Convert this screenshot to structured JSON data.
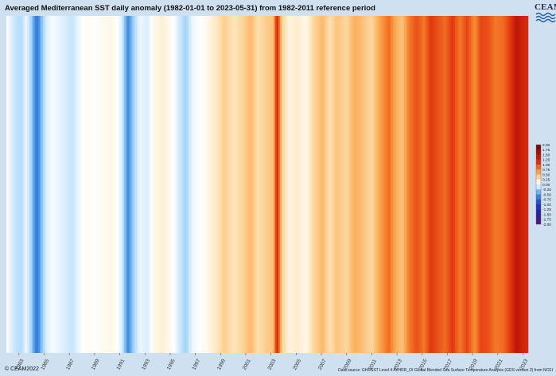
{
  "header": {
    "title": "Averaged Mediterranean SST daily anomaly (1982-01-01 to 2023-05-31) from 1982-2011 reference period",
    "logo_text": "CEAM"
  },
  "footer": {
    "copyright": "© CEAM2022",
    "source": "Data source: GHRSST Level 4 AVHRR_OI Global Blended Sea Surface Temperature Analysis (GDS version 2) from NCEI"
  },
  "colors": {
    "background": "#cfe0f1",
    "accent_warm": "#c41a05",
    "accent_cold": "#4a8fe0"
  },
  "chart_data": {
    "type": "heatmap",
    "title": "Averaged Mediterranean SST daily anomaly (1982-01-01 to 2023-05-31) from 1982-2011 reference period",
    "x_range": [
      "1982-01-01",
      "2023-05-31"
    ],
    "xtick_labels": [
      "1983",
      "1985",
      "1987",
      "1989",
      "1991",
      "1993",
      "1995",
      "1997",
      "1999",
      "2001",
      "2003",
      "2005",
      "2007",
      "2009",
      "2011",
      "2013",
      "2015",
      "2017",
      "2019",
      "2021",
      "2023"
    ],
    "colorbar": {
      "min": -2.0,
      "max": 2.0,
      "tick_labels": [
        "2.00",
        "1.75",
        "1.50",
        "1.25",
        "1.00",
        "0.75",
        "0.50",
        "0.25",
        "0.00",
        "-0.25",
        "-0.50",
        "-0.75",
        "-1.00",
        "-1.25",
        "-1.50",
        "-1.75",
        "-2.00"
      ]
    },
    "anomaly_series": [
      {
        "date": "1982-01-01",
        "value": 0.0
      },
      {
        "date": "1982-09-01",
        "value": -0.15
      },
      {
        "date": "1983-03-01",
        "value": -0.2
      },
      {
        "date": "1983-08-01",
        "value": -0.05
      },
      {
        "date": "1984-01-01",
        "value": -0.25
      },
      {
        "date": "1984-06-01",
        "value": -0.7
      },
      {
        "date": "1984-10-01",
        "value": -0.35
      },
      {
        "date": "1985-03-01",
        "value": -0.1
      },
      {
        "date": "1985-09-01",
        "value": -0.02
      },
      {
        "date": "1986-06-01",
        "value": -0.08
      },
      {
        "date": "1987-04-01",
        "value": -0.15
      },
      {
        "date": "1987-10-01",
        "value": -0.05
      },
      {
        "date": "1988-06-01",
        "value": 0.05
      },
      {
        "date": "1989-03-01",
        "value": 0.02
      },
      {
        "date": "1989-10-01",
        "value": 0.08
      },
      {
        "date": "1990-06-01",
        "value": 0.1
      },
      {
        "date": "1991-03-01",
        "value": -0.1
      },
      {
        "date": "1991-09-01",
        "value": -0.55
      },
      {
        "date": "1992-02-01",
        "value": -0.25
      },
      {
        "date": "1992-08-01",
        "value": -0.05
      },
      {
        "date": "1993-04-01",
        "value": -0.1
      },
      {
        "date": "1993-10-01",
        "value": 0.1
      },
      {
        "date": "1994-06-01",
        "value": 0.18
      },
      {
        "date": "1995-02-01",
        "value": 0.05
      },
      {
        "date": "1995-09-01",
        "value": -0.1
      },
      {
        "date": "1996-04-01",
        "value": -0.25
      },
      {
        "date": "1996-10-01",
        "value": -0.05
      },
      {
        "date": "1997-06-01",
        "value": 0.0
      },
      {
        "date": "1998-03-01",
        "value": 0.15
      },
      {
        "date": "1998-10-01",
        "value": 0.25
      },
      {
        "date": "1999-05-01",
        "value": 0.4
      },
      {
        "date": "2000-02-01",
        "value": 0.25
      },
      {
        "date": "2000-09-01",
        "value": 0.35
      },
      {
        "date": "2001-06-01",
        "value": 0.5
      },
      {
        "date": "2002-01-01",
        "value": 0.3
      },
      {
        "date": "2002-08-01",
        "value": 0.4
      },
      {
        "date": "2003-03-01",
        "value": 0.45
      },
      {
        "date": "2003-07-01",
        "value": 1.2
      },
      {
        "date": "2003-11-01",
        "value": 0.4
      },
      {
        "date": "2004-06-01",
        "value": 0.15
      },
      {
        "date": "2005-03-01",
        "value": 0.2
      },
      {
        "date": "2005-10-01",
        "value": 0.1
      },
      {
        "date": "2006-06-01",
        "value": 0.35
      },
      {
        "date": "2007-02-01",
        "value": 0.5
      },
      {
        "date": "2007-09-01",
        "value": 0.3
      },
      {
        "date": "2008-04-01",
        "value": 0.45
      },
      {
        "date": "2009-01-01",
        "value": 0.35
      },
      {
        "date": "2009-09-01",
        "value": 0.55
      },
      {
        "date": "2010-05-01",
        "value": 0.45
      },
      {
        "date": "2011-01-01",
        "value": 0.35
      },
      {
        "date": "2011-09-01",
        "value": 0.6
      },
      {
        "date": "2012-05-01",
        "value": 0.85
      },
      {
        "date": "2012-12-01",
        "value": 0.55
      },
      {
        "date": "2013-06-01",
        "value": 0.45
      },
      {
        "date": "2014-01-01",
        "value": 0.8
      },
      {
        "date": "2014-08-01",
        "value": 0.95
      },
      {
        "date": "2015-03-01",
        "value": 0.8
      },
      {
        "date": "2015-09-01",
        "value": 1.05
      },
      {
        "date": "2016-04-01",
        "value": 0.95
      },
      {
        "date": "2016-11-01",
        "value": 0.85
      },
      {
        "date": "2017-06-01",
        "value": 1.05
      },
      {
        "date": "2018-01-01",
        "value": 0.8
      },
      {
        "date": "2018-08-01",
        "value": 1.0
      },
      {
        "date": "2019-03-01",
        "value": 0.7
      },
      {
        "date": "2019-09-01",
        "value": 1.0
      },
      {
        "date": "2020-04-01",
        "value": 0.95
      },
      {
        "date": "2020-11-01",
        "value": 0.8
      },
      {
        "date": "2021-06-01",
        "value": 0.85
      },
      {
        "date": "2022-01-01",
        "value": 1.05
      },
      {
        "date": "2022-07-01",
        "value": 1.4
      },
      {
        "date": "2022-12-01",
        "value": 1.25
      },
      {
        "date": "2023-05-31",
        "value": 1.15
      }
    ]
  }
}
